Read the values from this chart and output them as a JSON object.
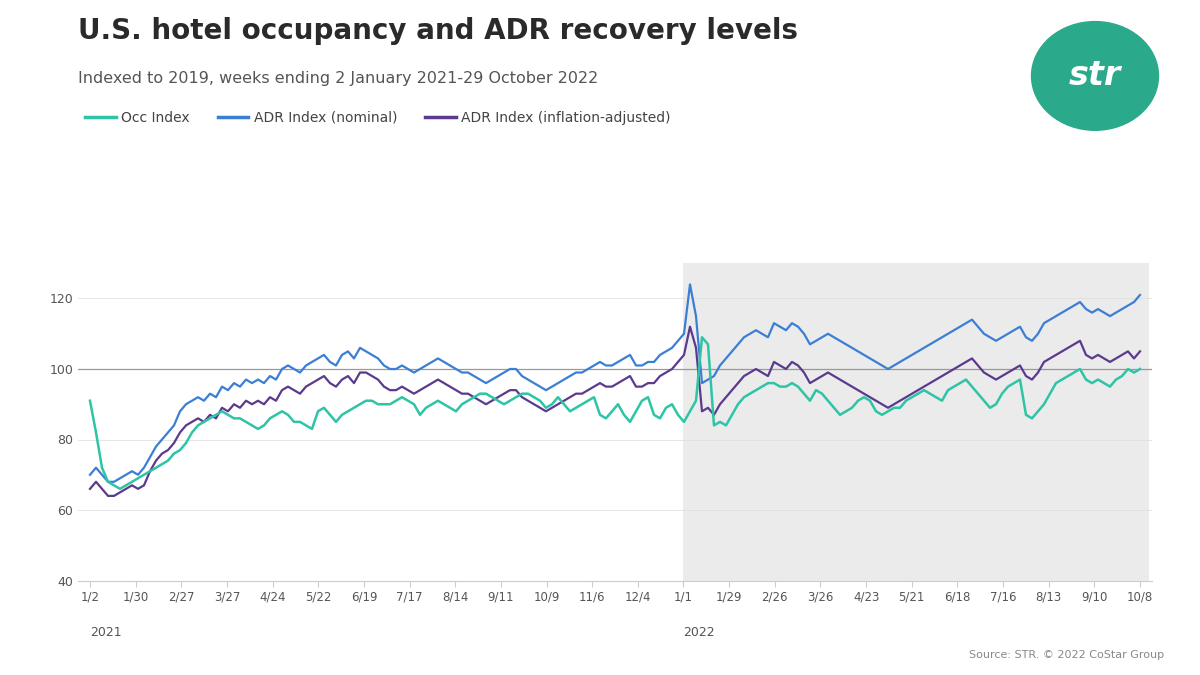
{
  "title": "U.S. hotel occupancy and ADR recovery levels",
  "subtitle": "Indexed to 2019, weeks ending 2 January 2021-29 October 2022",
  "source_text": "Source: STR. © 2022 CoStar Group",
  "legend_labels": [
    "Occ Index",
    "ADR Index (nominal)",
    "ADR Index (inflation-adjusted)"
  ],
  "colors": {
    "occ": "#2ec4a5",
    "adr_nominal": "#3b7fd4",
    "adr_inflation": "#5b3a8e"
  },
  "background_color": "#ffffff",
  "shade_color": "#ebebeb",
  "x_labels_2021": [
    "1/2",
    "1/30",
    "2/27",
    "3/27",
    "4/24",
    "5/22",
    "6/19",
    "7/17",
    "8/14",
    "9/11",
    "10/9",
    "11/6",
    "12/4"
  ],
  "x_labels_2022": [
    "1/1",
    "1/29",
    "2/26",
    "3/26",
    "4/23",
    "5/21",
    "6/18",
    "7/16",
    "8/13",
    "9/10",
    "10/8"
  ],
  "year_labels": [
    "2021",
    "2022"
  ],
  "ylim": [
    40,
    130
  ],
  "yticks": [
    40,
    60,
    80,
    100,
    120
  ],
  "occ_data": [
    91,
    82,
    72,
    68,
    67,
    66,
    67,
    68,
    69,
    70,
    71,
    72,
    73,
    74,
    76,
    77,
    79,
    82,
    84,
    85,
    86,
    87,
    88,
    87,
    86,
    86,
    85,
    84,
    83,
    84,
    86,
    87,
    88,
    87,
    85,
    85,
    84,
    83,
    88,
    89,
    87,
    85,
    87,
    88,
    89,
    90,
    91,
    91,
    90,
    90,
    90,
    91,
    92,
    91,
    90,
    87,
    89,
    90,
    91,
    90,
    89,
    88,
    90,
    91,
    92,
    93,
    93,
    92,
    91,
    90,
    91,
    92,
    93,
    93,
    92,
    91,
    89,
    90,
    92,
    90,
    88,
    89,
    90,
    91,
    92,
    87,
    86,
    88,
    90,
    87,
    85,
    88,
    91,
    92,
    87,
    86,
    89,
    90,
    87,
    85,
    88,
    91,
    109,
    107,
    84,
    85,
    84,
    87,
    90,
    92,
    93,
    94,
    95,
    96,
    96,
    95,
    95,
    96,
    95,
    93,
    91,
    94,
    93,
    91,
    89,
    87,
    88,
    89,
    91,
    92,
    91,
    88,
    87,
    88,
    89,
    89,
    91,
    92,
    93,
    94,
    93,
    92,
    91,
    94,
    95,
    96,
    97,
    95,
    93,
    91,
    89,
    90,
    93,
    95,
    96,
    97,
    87,
    86,
    88,
    90,
    93,
    96,
    97,
    98,
    99,
    100,
    97,
    96,
    97,
    96,
    95,
    97,
    98,
    100,
    99,
    100
  ],
  "adr_nominal_data": [
    70,
    72,
    70,
    68,
    68,
    69,
    70,
    71,
    70,
    72,
    75,
    78,
    80,
    82,
    84,
    88,
    90,
    91,
    92,
    91,
    93,
    92,
    95,
    94,
    96,
    95,
    97,
    96,
    97,
    96,
    98,
    97,
    100,
    101,
    100,
    99,
    101,
    102,
    103,
    104,
    102,
    101,
    104,
    105,
    103,
    106,
    105,
    104,
    103,
    101,
    100,
    100,
    101,
    100,
    99,
    100,
    101,
    102,
    103,
    102,
    101,
    100,
    99,
    99,
    98,
    97,
    96,
    97,
    98,
    99,
    100,
    100,
    98,
    97,
    96,
    95,
    94,
    95,
    96,
    97,
    98,
    99,
    99,
    100,
    101,
    102,
    101,
    101,
    102,
    103,
    104,
    101,
    101,
    102,
    102,
    104,
    105,
    106,
    108,
    110,
    124,
    115,
    96,
    97,
    98,
    101,
    103,
    105,
    107,
    109,
    110,
    111,
    110,
    109,
    113,
    112,
    111,
    113,
    112,
    110,
    107,
    108,
    109,
    110,
    109,
    108,
    107,
    106,
    105,
    104,
    103,
    102,
    101,
    100,
    101,
    102,
    103,
    104,
    105,
    106,
    107,
    108,
    109,
    110,
    111,
    112,
    113,
    114,
    112,
    110,
    109,
    108,
    109,
    110,
    111,
    112,
    109,
    108,
    110,
    113,
    114,
    115,
    116,
    117,
    118,
    119,
    117,
    116,
    117,
    116,
    115,
    116,
    117,
    118,
    119,
    121
  ],
  "adr_inflation_data": [
    66,
    68,
    66,
    64,
    64,
    65,
    66,
    67,
    66,
    67,
    71,
    74,
    76,
    77,
    79,
    82,
    84,
    85,
    86,
    85,
    87,
    86,
    89,
    88,
    90,
    89,
    91,
    90,
    91,
    90,
    92,
    91,
    94,
    95,
    94,
    93,
    95,
    96,
    97,
    98,
    96,
    95,
    97,
    98,
    96,
    99,
    99,
    98,
    97,
    95,
    94,
    94,
    95,
    94,
    93,
    94,
    95,
    96,
    97,
    96,
    95,
    94,
    93,
    93,
    92,
    91,
    90,
    91,
    92,
    93,
    94,
    94,
    92,
    91,
    90,
    89,
    88,
    89,
    90,
    91,
    92,
    93,
    93,
    94,
    95,
    96,
    95,
    95,
    96,
    97,
    98,
    95,
    95,
    96,
    96,
    98,
    99,
    100,
    102,
    104,
    112,
    106,
    88,
    89,
    87,
    90,
    92,
    94,
    96,
    98,
    99,
    100,
    99,
    98,
    102,
    101,
    100,
    102,
    101,
    99,
    96,
    97,
    98,
    99,
    98,
    97,
    96,
    95,
    94,
    93,
    92,
    91,
    90,
    89,
    90,
    91,
    92,
    93,
    94,
    95,
    96,
    97,
    98,
    99,
    100,
    101,
    102,
    103,
    101,
    99,
    98,
    97,
    98,
    99,
    100,
    101,
    98,
    97,
    99,
    102,
    103,
    104,
    105,
    106,
    107,
    108,
    104,
    103,
    104,
    103,
    102,
    103,
    104,
    105,
    103,
    105
  ]
}
